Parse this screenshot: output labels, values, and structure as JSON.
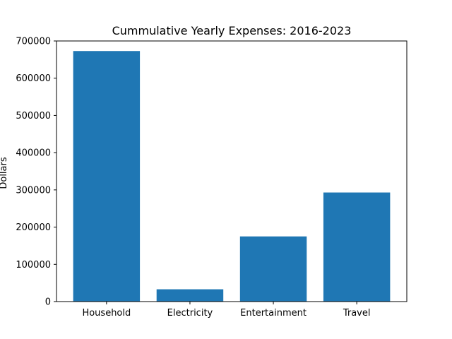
{
  "chart_data": {
    "type": "bar",
    "title": "Cummulative Yearly Expenses: 2016-2023",
    "xlabel": "",
    "ylabel": "Dollars",
    "categories": [
      "Household",
      "Electricity",
      "Entertainment",
      "Travel"
    ],
    "values": [
      673000,
      33000,
      175000,
      293000
    ],
    "ylim": [
      0,
      700000
    ],
    "yticks": [
      0,
      100000,
      200000,
      300000,
      400000,
      500000,
      600000,
      700000
    ],
    "ytick_labels": [
      "0",
      "100000",
      "200000",
      "300000",
      "400000",
      "500000",
      "600000",
      "700000"
    ],
    "bar_color": "#1f77b4",
    "grid": false,
    "legend": "none"
  }
}
